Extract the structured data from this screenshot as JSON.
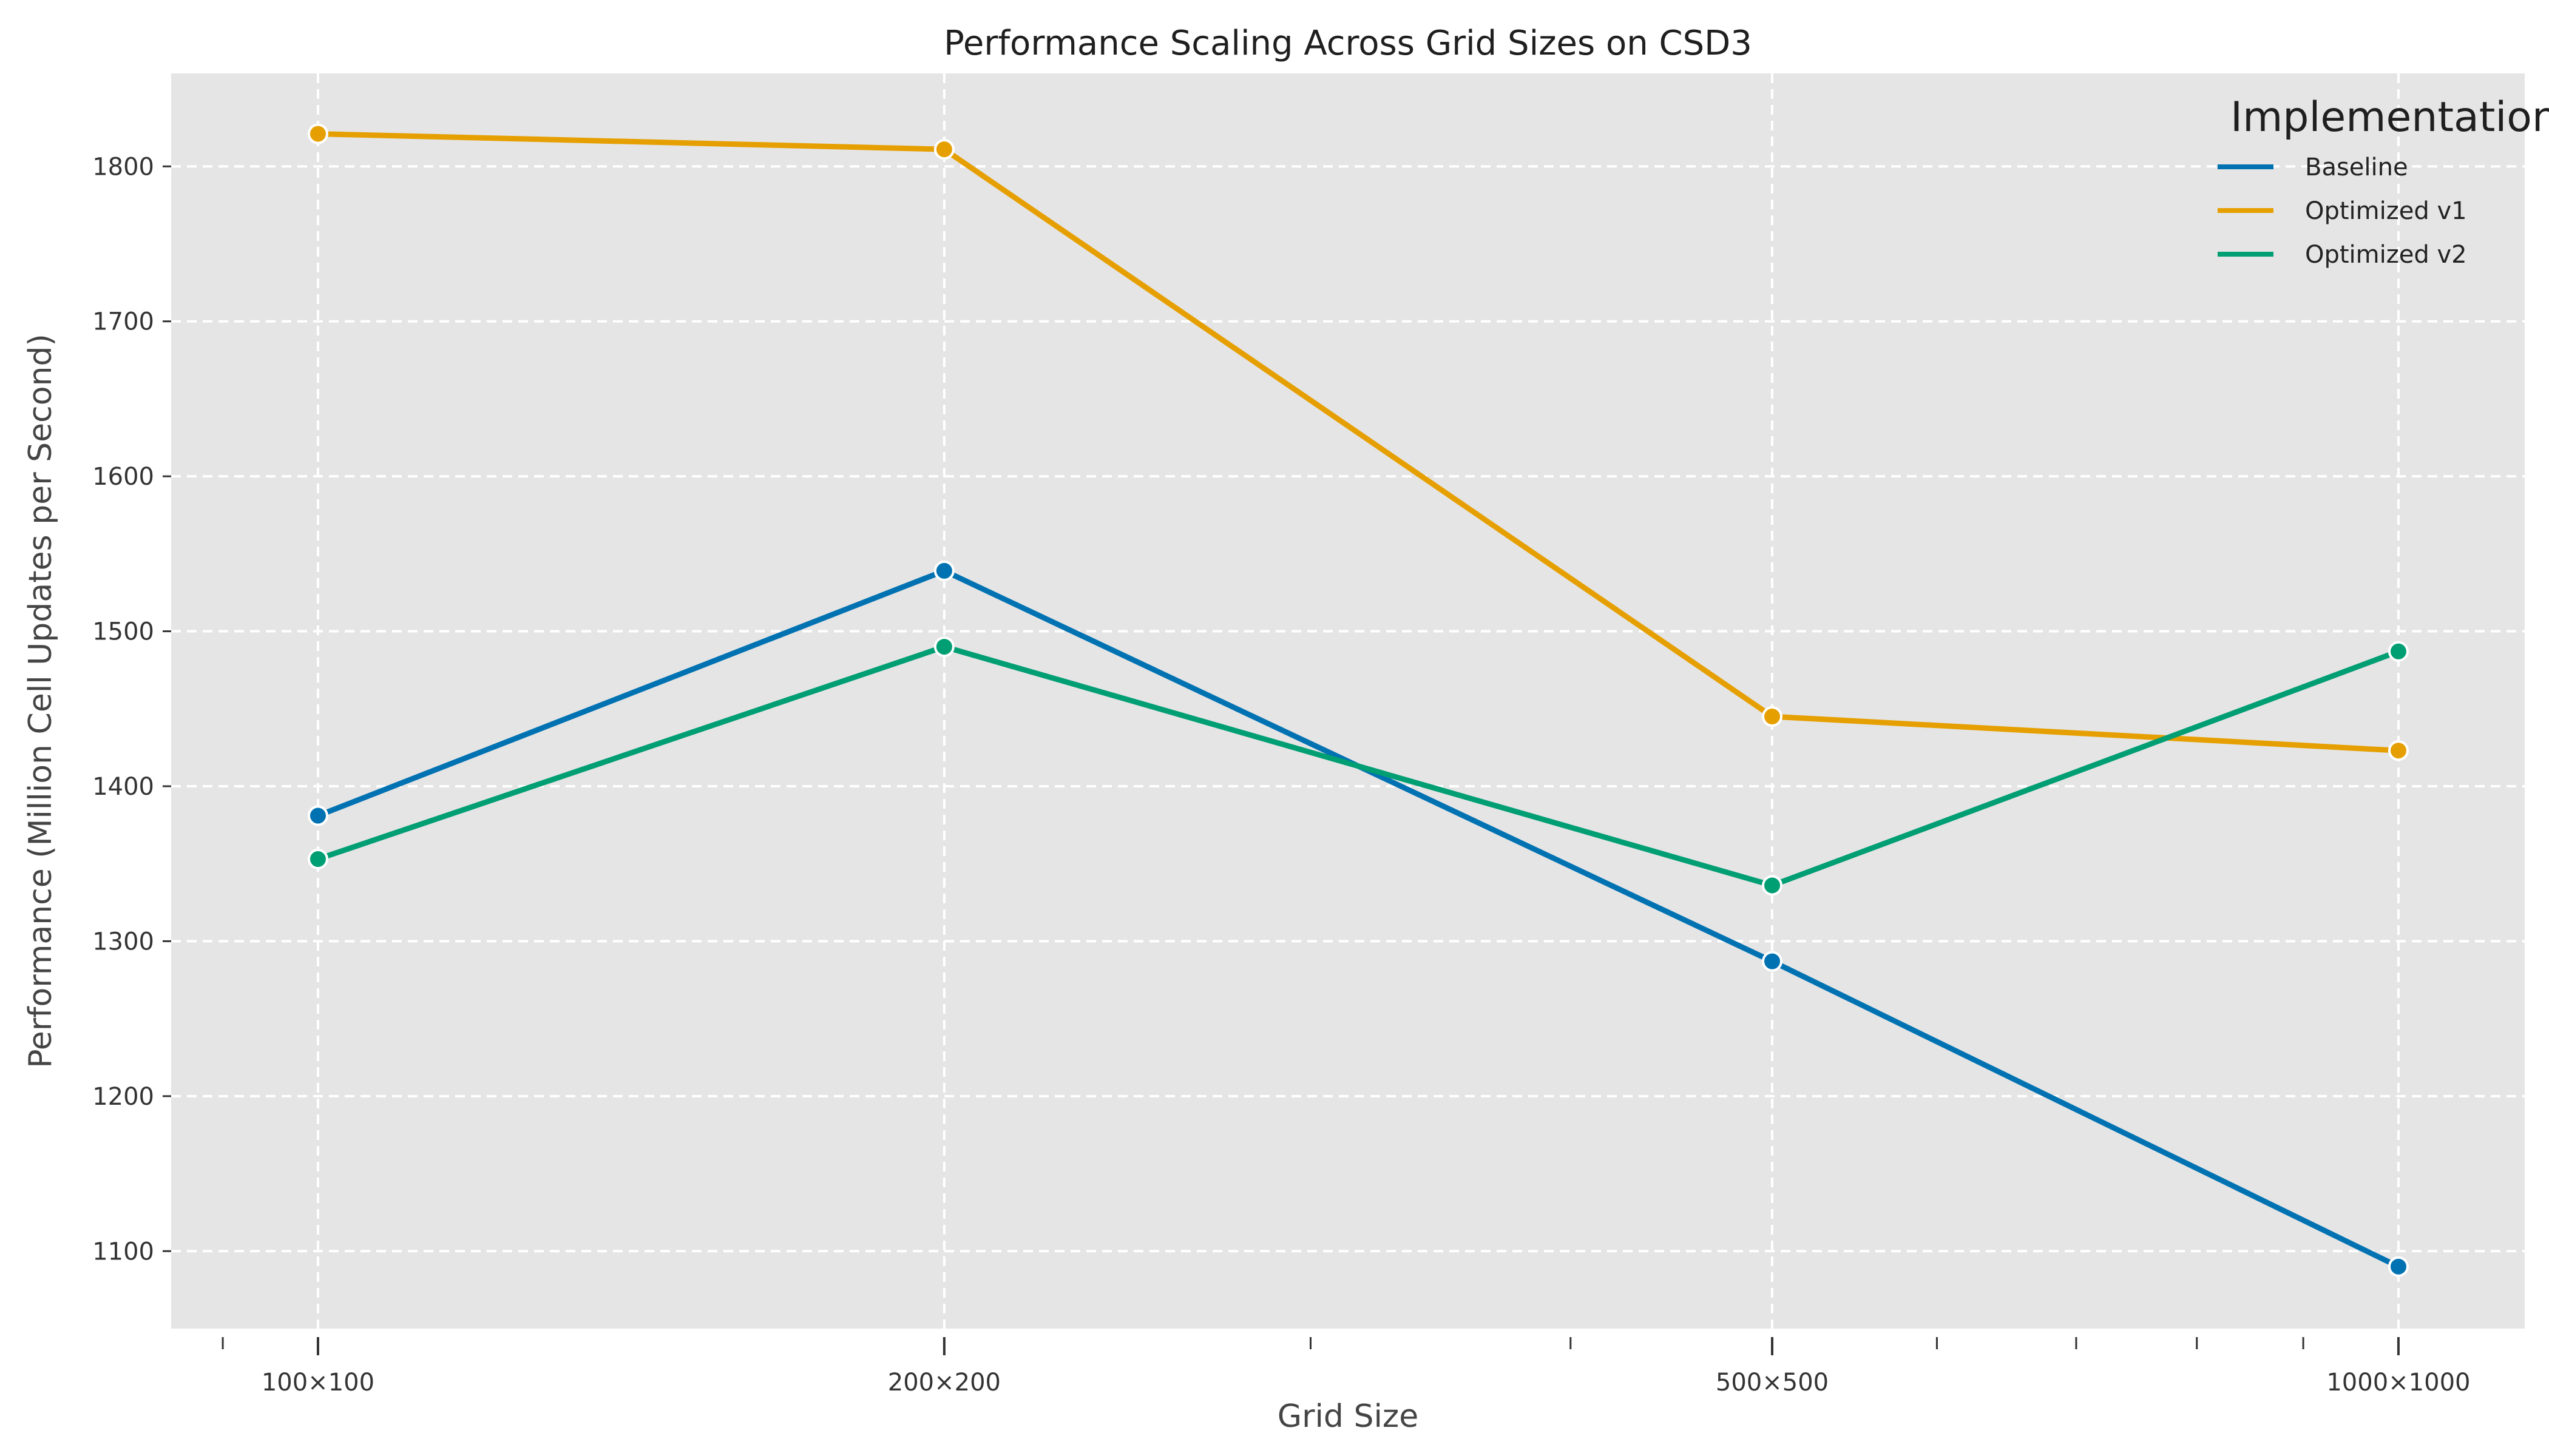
{
  "chart_data": {
    "type": "line",
    "title": "Performance Scaling Across Grid Sizes on CSD3",
    "xlabel": "Grid Size",
    "ylabel": "Performance (Million Cell Updates per Second)",
    "x_scale": "log",
    "x": [
      100,
      200,
      500,
      1000
    ],
    "x_tick_labels": [
      "100×100",
      "200×200",
      "500×500",
      "1000×1000"
    ],
    "xlim": [
      85,
      1150
    ],
    "ylim": [
      1050,
      1860
    ],
    "y_ticks": [
      1100,
      1200,
      1300,
      1400,
      1500,
      1600,
      1700,
      1800
    ],
    "grid": true,
    "background": "#e5e5e5",
    "grid_color": "#ffffff",
    "legend": {
      "title": "Implementation",
      "position": "top-right"
    },
    "series": [
      {
        "name": "Baseline",
        "color": "#0072b2",
        "values": [
          1381,
          1539,
          1287,
          1090
        ]
      },
      {
        "name": "Optimized v1",
        "color": "#e69f00",
        "values": [
          1821,
          1811,
          1445,
          1423
        ]
      },
      {
        "name": "Optimized v2",
        "color": "#009e73",
        "values": [
          1353,
          1490,
          1336,
          1487
        ]
      }
    ]
  }
}
